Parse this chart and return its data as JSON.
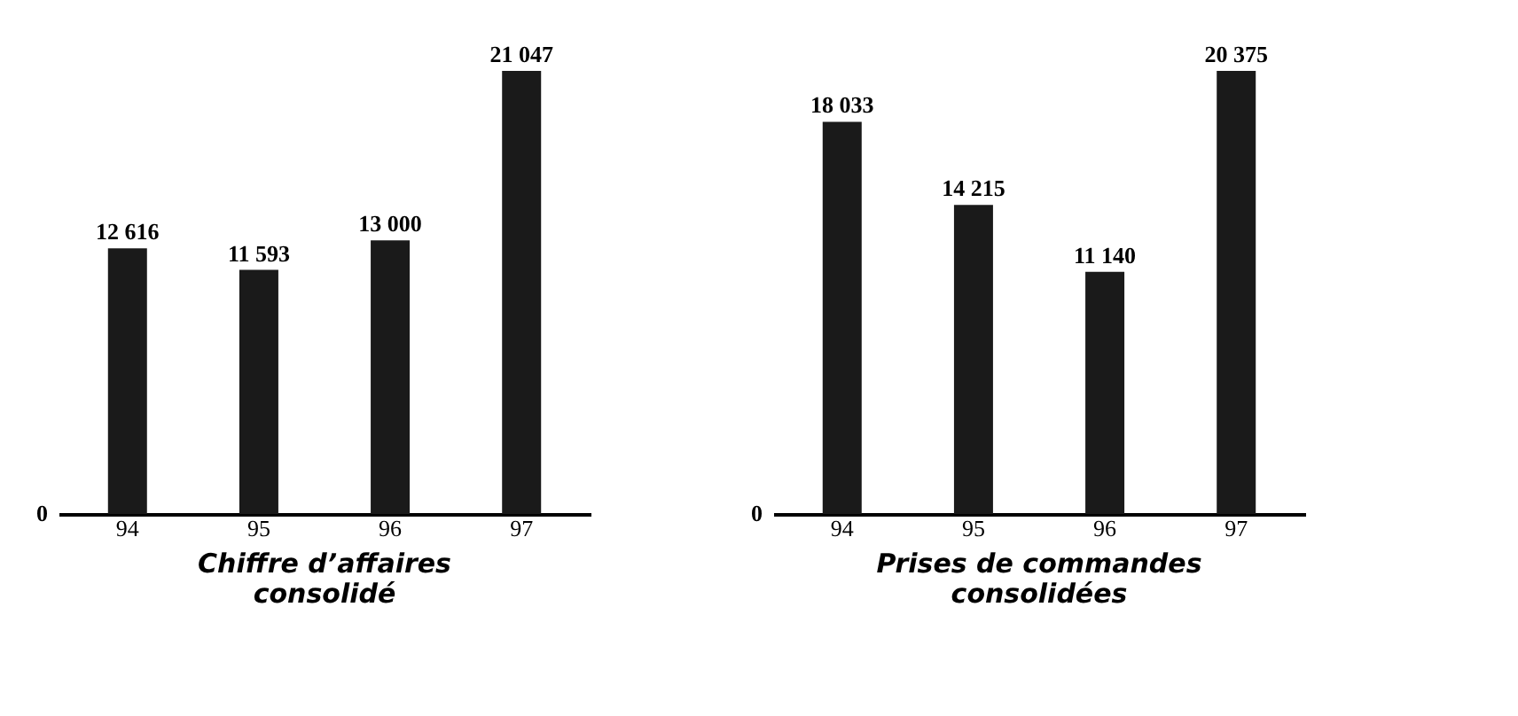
{
  "chart_data": [
    {
      "type": "bar",
      "title": "Chiffre d’affaires\nconsolidé",
      "categories": [
        "94",
        "95",
        "96",
        "97"
      ],
      "values": [
        12616,
        11593,
        13000,
        21047
      ],
      "value_labels": [
        "12 616",
        "11 593",
        "13 000",
        "21 047"
      ],
      "color": "#1a1a1a",
      "annotations": [
        "0"
      ]
    },
    {
      "type": "bar",
      "title": "Prises de commandes\nconsolidées",
      "categories": [
        "94",
        "95",
        "96",
        "97"
      ],
      "values": [
        18033,
        14215,
        11140,
        20375
      ],
      "value_labels": [
        "18 033",
        "14 215",
        "11 140",
        "20 375"
      ],
      "color": "#1a1a1a",
      "annotations": [
        "0"
      ]
    }
  ]
}
